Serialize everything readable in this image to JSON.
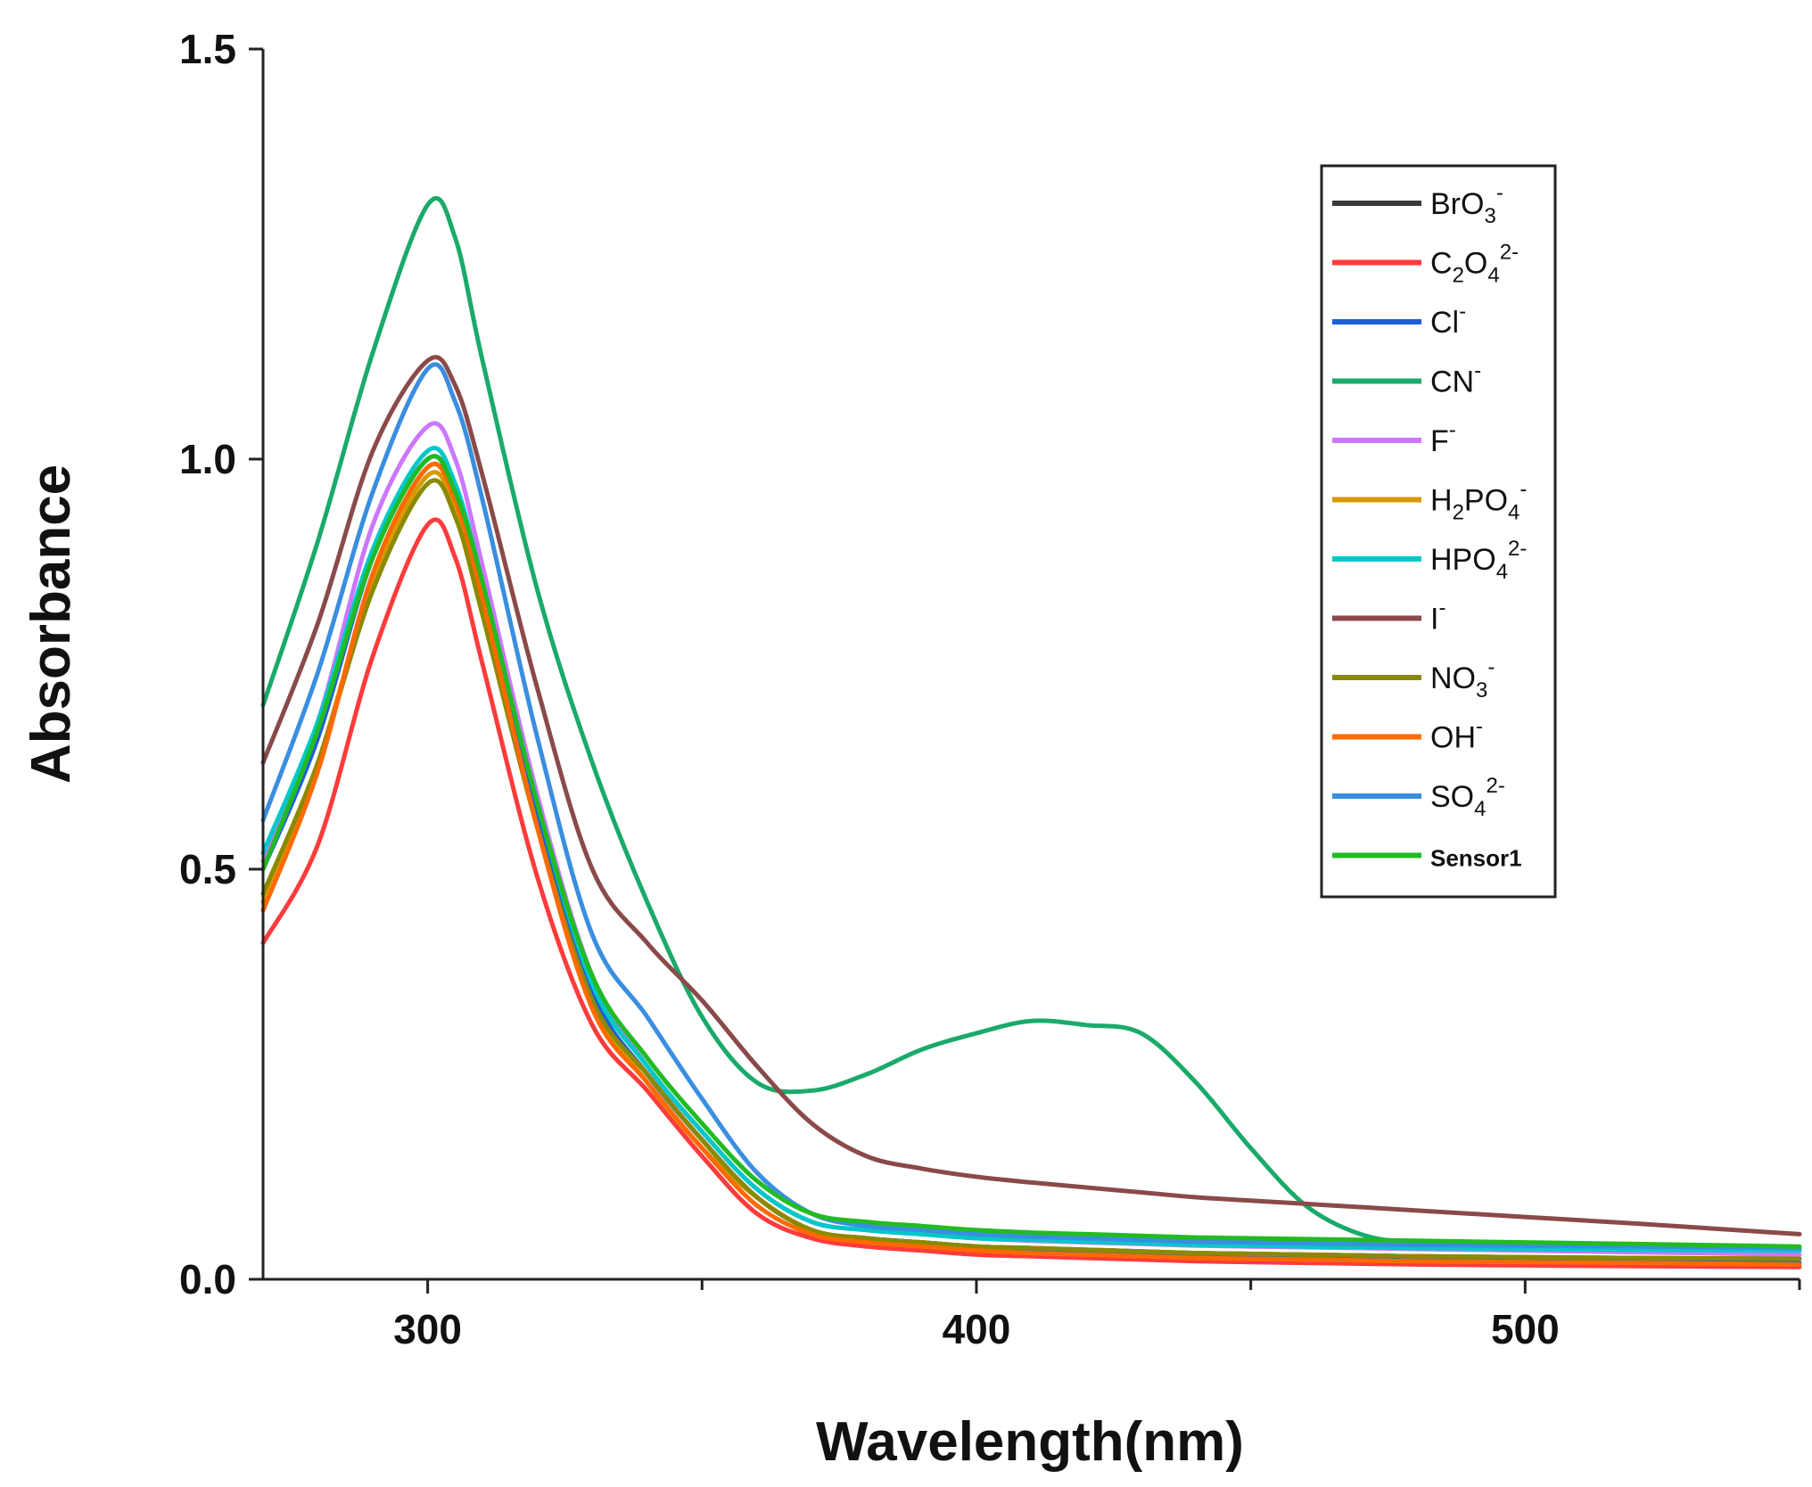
{
  "chart_data": {
    "type": "line",
    "title": "",
    "xlabel": "Wavelength(nm)",
    "ylabel": "Absorbance",
    "xlim": [
      270,
      550
    ],
    "ylim": [
      0.0,
      1.5
    ],
    "x_ticks": [
      {
        "value": 300,
        "label": "300"
      },
      {
        "value": 400,
        "label": "400"
      },
      {
        "value": 500,
        "label": "500"
      }
    ],
    "x_minor_ticks": [
      350,
      450,
      550
    ],
    "y_ticks": [
      {
        "value": 0.0,
        "label": "0.0"
      },
      {
        "value": 0.5,
        "label": "0.5"
      },
      {
        "value": 1.0,
        "label": "1.0"
      },
      {
        "value": 1.5,
        "label": "1.5"
      }
    ],
    "grid": false,
    "legend_position": "top-right",
    "x": [
      270,
      280,
      290,
      300,
      305,
      310,
      320,
      330,
      340,
      350,
      360,
      370,
      380,
      390,
      400,
      410,
      420,
      430,
      440,
      450,
      460,
      470,
      480,
      500,
      520,
      550
    ],
    "series": [
      {
        "name": "BrO3-",
        "label_main": "BrO",
        "label_sub": "3",
        "label_sup": "-",
        "color": "#3a3a3a",
        "values": [
          0.45,
          0.62,
          0.86,
          0.99,
          0.95,
          0.83,
          0.56,
          0.34,
          0.25,
          0.17,
          0.1,
          0.06,
          0.05,
          0.045,
          0.04,
          0.038,
          0.036,
          0.034,
          0.032,
          0.031,
          0.03,
          0.029,
          0.028,
          0.027,
          0.026,
          0.025
        ]
      },
      {
        "name": "C2O42-",
        "label_main": "C",
        "label_sub": "2",
        "label_mid": "O",
        "label_sub2": "4",
        "label_sup": "2-",
        "color": "#ff3b3b",
        "values": [
          0.41,
          0.53,
          0.76,
          0.92,
          0.88,
          0.75,
          0.49,
          0.31,
          0.23,
          0.15,
          0.08,
          0.05,
          0.04,
          0.035,
          0.03,
          0.028,
          0.026,
          0.024,
          0.022,
          0.021,
          0.02,
          0.019,
          0.018,
          0.017,
          0.016,
          0.015
        ]
      },
      {
        "name": "Cl-",
        "label_main": "Cl",
        "label_sup": "-",
        "color": "#1f5fd6",
        "values": [
          0.5,
          0.66,
          0.88,
          1.0,
          0.96,
          0.84,
          0.57,
          0.35,
          0.25,
          0.17,
          0.1,
          0.06,
          0.05,
          0.045,
          0.04,
          0.037,
          0.035,
          0.033,
          0.031,
          0.03,
          0.029,
          0.028,
          0.027,
          0.025,
          0.023,
          0.02
        ]
      },
      {
        "name": "CN-",
        "label_main": "CN",
        "label_sup": "-",
        "color": "#1aaa6a",
        "values": [
          0.7,
          0.9,
          1.13,
          1.31,
          1.27,
          1.12,
          0.84,
          0.63,
          0.46,
          0.32,
          0.24,
          0.23,
          0.25,
          0.28,
          0.3,
          0.315,
          0.31,
          0.3,
          0.24,
          0.16,
          0.09,
          0.055,
          0.045,
          0.04,
          0.038,
          0.035
        ]
      },
      {
        "name": "F-",
        "label_main": "F",
        "label_sup": "-",
        "color": "#cc77ff",
        "values": [
          0.51,
          0.68,
          0.92,
          1.04,
          1.0,
          0.87,
          0.59,
          0.37,
          0.26,
          0.18,
          0.11,
          0.07,
          0.06,
          0.055,
          0.05,
          0.047,
          0.045,
          0.043,
          0.041,
          0.04,
          0.039,
          0.038,
          0.037,
          0.035,
          0.033,
          0.03
        ]
      },
      {
        "name": "H2PO4-",
        "label_main": "H",
        "label_sub": "2",
        "label_mid": "PO",
        "label_sub2": "4",
        "label_sup": "-",
        "color": "#d99a00",
        "values": [
          0.46,
          0.63,
          0.85,
          0.98,
          0.94,
          0.82,
          0.55,
          0.34,
          0.24,
          0.16,
          0.1,
          0.06,
          0.05,
          0.045,
          0.04,
          0.038,
          0.036,
          0.034,
          0.032,
          0.031,
          0.03,
          0.029,
          0.028,
          0.027,
          0.026,
          0.025
        ]
      },
      {
        "name": "HPO42-",
        "label_main": "HPO",
        "label_sub": "4",
        "label_sup": "2-",
        "color": "#00c8c8",
        "values": [
          0.52,
          0.68,
          0.89,
          1.01,
          0.97,
          0.85,
          0.58,
          0.36,
          0.26,
          0.18,
          0.11,
          0.07,
          0.06,
          0.055,
          0.05,
          0.048,
          0.046,
          0.044,
          0.042,
          0.041,
          0.04,
          0.039,
          0.038,
          0.037,
          0.036,
          0.035
        ]
      },
      {
        "name": "I-",
        "label_main": "I",
        "label_sup": "-",
        "color": "#8a4a4a",
        "values": [
          0.63,
          0.8,
          1.01,
          1.12,
          1.09,
          0.98,
          0.72,
          0.5,
          0.41,
          0.34,
          0.26,
          0.19,
          0.15,
          0.135,
          0.125,
          0.118,
          0.112,
          0.106,
          0.1,
          0.096,
          0.092,
          0.088,
          0.084,
          0.076,
          0.068,
          0.055
        ]
      },
      {
        "name": "NO3-",
        "label_main": "NO",
        "label_sub": "3",
        "label_sup": "-",
        "color": "#8a8a00",
        "values": [
          0.47,
          0.63,
          0.84,
          0.97,
          0.93,
          0.81,
          0.55,
          0.34,
          0.25,
          0.17,
          0.1,
          0.06,
          0.05,
          0.045,
          0.04,
          0.038,
          0.036,
          0.034,
          0.032,
          0.031,
          0.03,
          0.029,
          0.028,
          0.027,
          0.026,
          0.025
        ]
      },
      {
        "name": "OH-",
        "label_main": "OH",
        "label_sup": "-",
        "color": "#ff6a00",
        "values": [
          0.45,
          0.62,
          0.86,
          0.99,
          0.95,
          0.83,
          0.55,
          0.33,
          0.24,
          0.16,
          0.09,
          0.055,
          0.045,
          0.04,
          0.035,
          0.032,
          0.03,
          0.028,
          0.026,
          0.025,
          0.024,
          0.023,
          0.022,
          0.021,
          0.02,
          0.018
        ]
      },
      {
        "name": "SO42-",
        "label_main": "SO",
        "label_sub": "4",
        "label_sup": "2-",
        "color": "#3a8ee0",
        "values": [
          0.56,
          0.74,
          0.96,
          1.11,
          1.07,
          0.95,
          0.66,
          0.42,
          0.32,
          0.22,
          0.13,
          0.08,
          0.065,
          0.06,
          0.055,
          0.052,
          0.05,
          0.048,
          0.046,
          0.045,
          0.044,
          0.043,
          0.042,
          0.041,
          0.04,
          0.038
        ]
      },
      {
        "name": "Sensor1",
        "label_main": "Sensor1",
        "color": "#22bb22",
        "values": [
          0.5,
          0.67,
          0.88,
          1.0,
          0.96,
          0.85,
          0.58,
          0.37,
          0.27,
          0.19,
          0.12,
          0.08,
          0.07,
          0.065,
          0.06,
          0.057,
          0.055,
          0.053,
          0.051,
          0.05,
          0.049,
          0.048,
          0.047,
          0.045,
          0.043,
          0.04
        ]
      }
    ]
  }
}
